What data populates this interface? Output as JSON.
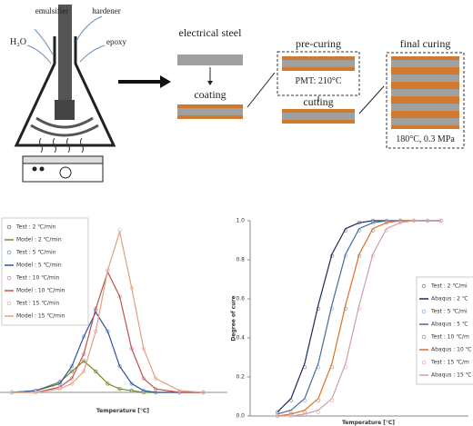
{
  "diagram": {
    "labels": [
      "emulsifier",
      "hardener",
      "H₂O",
      "epoxy",
      "electrical steel",
      "coating",
      "pre-curing",
      "PMT: 210°C",
      "cutting",
      "final curing",
      "180°C, 0.3 MPa"
    ]
  },
  "chart_data": [
    {
      "type": "line",
      "x_label": "Temperature [℃]",
      "xlim": [
        50,
        240
      ],
      "ylim": [
        0,
        1
      ],
      "x": [
        60,
        80,
        100,
        110,
        120,
        130,
        140,
        150,
        160,
        170,
        180,
        200,
        220
      ],
      "series": [
        {
          "name": "Test : 2 ℃/min",
          "color": "#a08070",
          "style": "markers",
          "values": [
            0,
            0.01,
            0.06,
            0.12,
            0.18,
            0.12,
            0.05,
            0.02,
            0.01,
            0,
            0,
            0,
            0
          ]
        },
        {
          "name": "Model : 2 ℃/min",
          "color": "#6b8e23",
          "style": "line",
          "values": [
            0,
            0.01,
            0.06,
            0.12,
            0.18,
            0.12,
            0.05,
            0.02,
            0.01,
            0,
            0,
            0,
            0
          ]
        },
        {
          "name": "Test : 5 ℃/min",
          "color": "#7fa7d9",
          "style": "markers",
          "values": [
            0,
            0.01,
            0.05,
            0.15,
            0.32,
            0.47,
            0.35,
            0.15,
            0.05,
            0.01,
            0,
            0,
            0
          ]
        },
        {
          "name": "Model : 5 ℃/min",
          "color": "#2f5597",
          "style": "line",
          "values": [
            0,
            0.01,
            0.05,
            0.15,
            0.32,
            0.46,
            0.35,
            0.15,
            0.05,
            0.01,
            0,
            0,
            0
          ]
        },
        {
          "name": "Test : 10 ℃/min",
          "color": "#d9a0a0",
          "style": "markers",
          "values": [
            0,
            0,
            0.03,
            0.08,
            0.22,
            0.48,
            0.7,
            0.55,
            0.25,
            0.08,
            0.02,
            0,
            0
          ]
        },
        {
          "name": "Model : 10 ℃/min",
          "color": "#c0504d",
          "style": "line",
          "values": [
            0,
            0,
            0.03,
            0.08,
            0.22,
            0.48,
            0.69,
            0.55,
            0.25,
            0.08,
            0.02,
            0,
            0
          ]
        },
        {
          "name": "Test : 15 ℃/min",
          "color": "#e8b8c8",
          "style": "markers",
          "values": [
            0,
            0,
            0.02,
            0.05,
            0.12,
            0.35,
            0.7,
            0.93,
            0.6,
            0.25,
            0.08,
            0.01,
            0
          ]
        },
        {
          "name": "Model : 15 ℃/min",
          "color": "#e0a080",
          "style": "line",
          "values": [
            0,
            0,
            0.02,
            0.05,
            0.12,
            0.35,
            0.7,
            0.92,
            0.6,
            0.25,
            0.08,
            0.01,
            0
          ]
        }
      ]
    },
    {
      "type": "line",
      "x_label": "Temperature [℃]",
      "y_label": "Degree of cure",
      "xlim": [
        80,
        240
      ],
      "ylim": [
        0,
        1
      ],
      "yticks": [
        {
          "value": 0,
          "label": "0.0"
        },
        {
          "value": 0.2,
          "label": "0.2"
        },
        {
          "value": 0.4,
          "label": "0.4"
        },
        {
          "value": 0.6,
          "label": "0.6"
        },
        {
          "value": 0.8,
          "label": "0.8"
        },
        {
          "value": 1,
          "label": "1.0"
        }
      ],
      "x": [
        100,
        110,
        120,
        130,
        140,
        150,
        160,
        170,
        180,
        190,
        200,
        210,
        220
      ],
      "series": [
        {
          "name": "Test : 2 ℃/mi",
          "color": "#999999",
          "style": "markers",
          "values": [
            0.02,
            0.08,
            0.25,
            0.55,
            0.82,
            0.95,
            0.99,
            1,
            1,
            1,
            1,
            1,
            1
          ]
        },
        {
          "name": "Abaqus : 2 ℃",
          "color": "#1f2a5a",
          "style": "line",
          "values": [
            0.02,
            0.09,
            0.27,
            0.57,
            0.83,
            0.96,
            0.99,
            1,
            1,
            1,
            1,
            1,
            1
          ]
        },
        {
          "name": "Test : 5 ℃/mi",
          "color": "#9dc3e6",
          "style": "markers",
          "values": [
            0.01,
            0.02,
            0.08,
            0.25,
            0.55,
            0.82,
            0.95,
            0.99,
            1,
            1,
            1,
            1,
            1
          ]
        },
        {
          "name": "Abaqus : 5 ℃",
          "color": "#4a6a9a",
          "style": "line",
          "values": [
            0.01,
            0.03,
            0.09,
            0.27,
            0.57,
            0.83,
            0.96,
            0.99,
            1,
            1,
            1,
            1,
            1
          ]
        },
        {
          "name": "Test : 10 ℃/m",
          "color": "#aaaaaa",
          "style": "markers",
          "values": [
            0,
            0.01,
            0.02,
            0.08,
            0.25,
            0.55,
            0.82,
            0.95,
            0.99,
            1,
            1,
            1,
            1
          ]
        },
        {
          "name": "Abaqus : 10 ℃",
          "color": "#e07020",
          "style": "line",
          "values": [
            0,
            0.01,
            0.03,
            0.09,
            0.27,
            0.57,
            0.83,
            0.96,
            0.99,
            1,
            1,
            1,
            1
          ]
        },
        {
          "name": "Test : 15 ℃/m",
          "color": "#f4b6c2",
          "style": "markers",
          "values": [
            0,
            0,
            0.01,
            0.02,
            0.08,
            0.25,
            0.55,
            0.82,
            0.95,
            0.99,
            1,
            1,
            1
          ]
        },
        {
          "name": "Abaqus : 15 ℃",
          "color": "#c9a0b0",
          "style": "line",
          "values": [
            0,
            0,
            0.01,
            0.03,
            0.09,
            0.27,
            0.57,
            0.83,
            0.96,
            0.99,
            1,
            1,
            1
          ]
        }
      ]
    }
  ]
}
